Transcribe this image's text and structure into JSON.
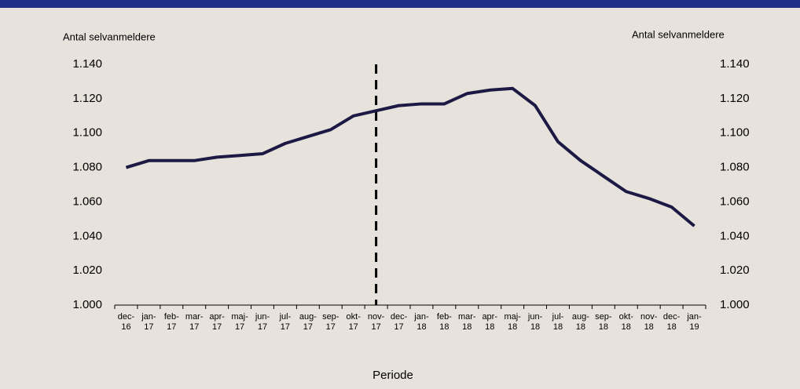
{
  "chart_data": {
    "type": "line",
    "y_label": "Antal selvanmeldere",
    "y2_label": "Antal selvanmeldere",
    "x_label": "Periode",
    "categories": [
      "dec-\n16",
      "jan-\n17",
      "feb-\n17",
      "mar-\n17",
      "apr-\n17",
      "maj-\n17",
      "jun-\n17",
      "jul-\n17",
      "aug-\n17",
      "sep-\n17",
      "okt-\n17",
      "nov-\n17",
      "dec-\n17",
      "jan-\n18",
      "feb-\n18",
      "mar-\n18",
      "apr-\n18",
      "maj-\n18",
      "jun-\n18",
      "jul-\n18",
      "aug-\n18",
      "sep-\n18",
      "okt-\n18",
      "nov-\n18",
      "dec-\n18",
      "jan-\n19"
    ],
    "series": [
      {
        "color": "#1c1a45",
        "values": [
          1080,
          1084,
          1084,
          1084,
          1086,
          1087,
          1088,
          1094,
          1098,
          1102,
          1110,
          1113,
          1116,
          1117,
          1117,
          1123,
          1125,
          1126,
          1116,
          1095,
          1084,
          1075,
          1066,
          1062,
          1057,
          1046
        ]
      }
    ],
    "vline_index": 11,
    "ylim": [
      1000,
      1140
    ],
    "yticks": [
      {
        "value": 1000,
        "label": "1.000"
      },
      {
        "value": 1020,
        "label": "1.020"
      },
      {
        "value": 1040,
        "label": "1.040"
      },
      {
        "value": 1060,
        "label": "1.060"
      },
      {
        "value": 1080,
        "label": "1.080"
      },
      {
        "value": 1100,
        "label": "1.100"
      },
      {
        "value": 1120,
        "label": "1.120"
      },
      {
        "value": 1140,
        "label": "1.140"
      }
    ],
    "y2lim": [
      1000,
      1140
    ],
    "y2ticks": [
      {
        "value": 1000,
        "label": "1.000"
      },
      {
        "value": 1020,
        "label": "1.020"
      },
      {
        "value": 1040,
        "label": "1.040"
      },
      {
        "value": 1060,
        "label": "1.060"
      },
      {
        "value": 1080,
        "label": "1.080"
      },
      {
        "value": 1100,
        "label": "1.100"
      },
      {
        "value": 1120,
        "label": "1.120"
      },
      {
        "value": 1140,
        "label": "1.140"
      }
    ]
  }
}
